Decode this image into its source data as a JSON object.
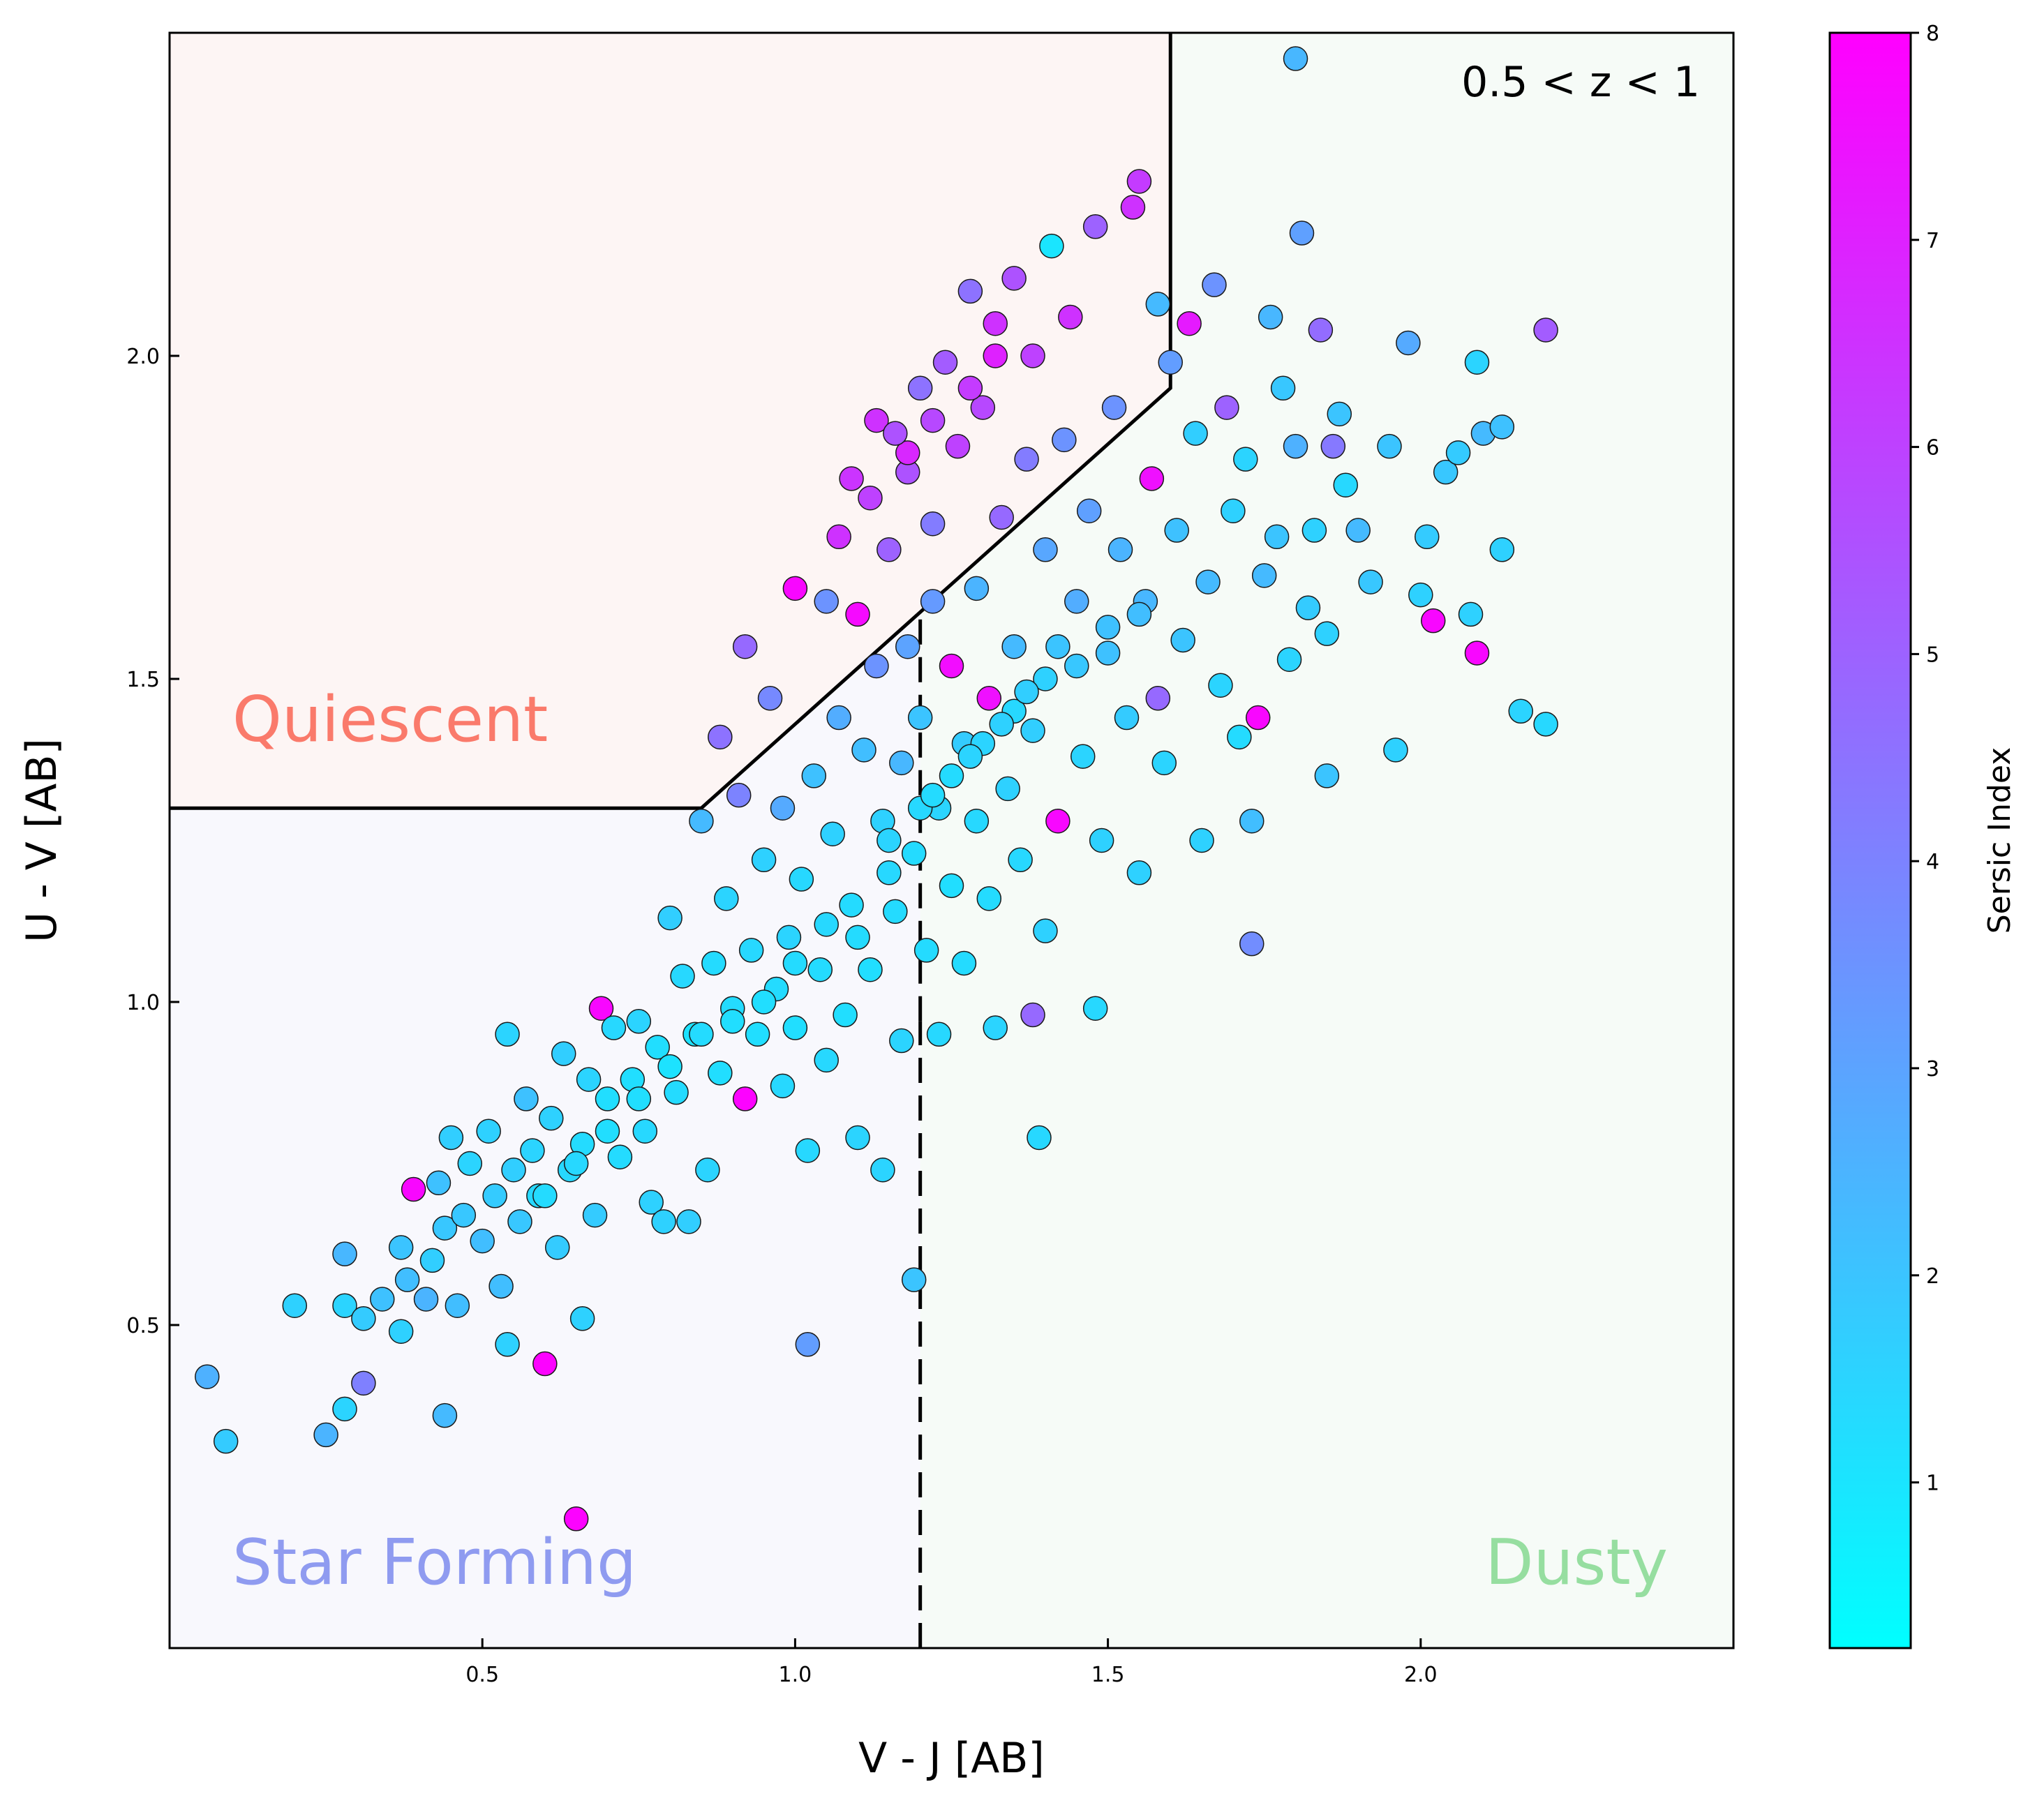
{
  "chart_data": {
    "type": "scatter",
    "xlabel": "V - J [AB]",
    "ylabel": "U - V [AB]",
    "xlim": [
      0.0,
      2.5
    ],
    "ylim": [
      0.0,
      2.5
    ],
    "xticks": [
      "0.5",
      "1.0",
      "1.5",
      "2.0"
    ],
    "yticks": [
      "0.5",
      "1.0",
      "1.5",
      "2.0"
    ],
    "grid": false,
    "annotation": "0.5 < z < 1",
    "regions": {
      "quiescent": {
        "label": "Quiescent",
        "color": "#fa7a6b",
        "fill": "#fdf5f4"
      },
      "star_forming": {
        "label": "Star Forming",
        "color": "#8f9bf0",
        "fill": "#f8f8fd"
      },
      "dusty": {
        "label": "Dusty",
        "color": "#96dea0",
        "fill": "#f6fbf7"
      }
    },
    "boundaries": {
      "quiescent_box": [
        [
          0.0,
          1.3
        ],
        [
          0.85,
          1.3
        ],
        [
          1.6,
          1.95
        ],
        [
          1.6,
          2.5
        ]
      ],
      "dusty_split": [
        [
          1.2,
          0.0
        ],
        [
          1.2,
          0.97
        ]
      ]
    },
    "colorbar": {
      "label": "Sersic Index",
      "range": [
        0.2,
        8.0
      ],
      "ticks": [
        "1",
        "2",
        "3",
        "4",
        "5",
        "6",
        "7",
        "8"
      ],
      "colormap": "cool",
      "color_low": "#00ffff",
      "color_high": "#ff00ff"
    },
    "points": [
      [
        0.06,
        0.42,
        2.6
      ],
      [
        0.09,
        0.32,
        1.8
      ],
      [
        0.2,
        0.53,
        1.6
      ],
      [
        0.25,
        0.33,
        2.5
      ],
      [
        0.28,
        0.37,
        1.5
      ],
      [
        0.28,
        0.53,
        1.5
      ],
      [
        0.28,
        0.61,
        2.4
      ],
      [
        0.31,
        0.51,
        1.8
      ],
      [
        0.31,
        0.41,
        4.1
      ],
      [
        0.34,
        0.54,
        2.1
      ],
      [
        0.37,
        0.49,
        1.6
      ],
      [
        0.37,
        0.62,
        2.0
      ],
      [
        0.38,
        0.57,
        2.2
      ],
      [
        0.39,
        0.71,
        7.8
      ],
      [
        0.41,
        0.54,
        2.5
      ],
      [
        0.42,
        0.6,
        1.7
      ],
      [
        0.43,
        0.72,
        2.1
      ],
      [
        0.44,
        0.36,
        2.3
      ],
      [
        0.44,
        0.65,
        1.9
      ],
      [
        0.45,
        0.79,
        1.7
      ],
      [
        0.46,
        0.53,
        2.2
      ],
      [
        0.47,
        0.67,
        1.9
      ],
      [
        0.48,
        0.75,
        1.5
      ],
      [
        0.5,
        0.63,
        2.2
      ],
      [
        0.51,
        0.8,
        1.6
      ],
      [
        0.52,
        0.7,
        1.8
      ],
      [
        0.53,
        0.56,
        2.2
      ],
      [
        0.54,
        0.47,
        1.6
      ],
      [
        0.54,
        0.95,
        1.5
      ],
      [
        0.55,
        0.74,
        1.7
      ],
      [
        0.56,
        0.66,
        1.9
      ],
      [
        0.57,
        0.85,
        2.1
      ],
      [
        0.58,
        0.77,
        1.5
      ],
      [
        0.59,
        0.7,
        1.4
      ],
      [
        0.6,
        0.44,
        7.9
      ],
      [
        0.61,
        0.82,
        1.6
      ],
      [
        0.62,
        0.62,
        1.8
      ],
      [
        0.63,
        0.92,
        1.7
      ],
      [
        0.64,
        0.74,
        1.4
      ],
      [
        0.65,
        0.2,
        7.9
      ],
      [
        0.66,
        0.51,
        1.6
      ],
      [
        0.66,
        0.78,
        1.3
      ],
      [
        0.67,
        0.88,
        1.5
      ],
      [
        0.68,
        0.67,
        1.8
      ],
      [
        0.69,
        0.99,
        7.8
      ],
      [
        0.7,
        0.85,
        1.2
      ],
      [
        0.71,
        0.96,
        1.4
      ],
      [
        0.72,
        0.76,
        1.3
      ],
      [
        0.74,
        0.88,
        1.2
      ],
      [
        0.75,
        0.97,
        1.5
      ],
      [
        0.76,
        0.8,
        1.4
      ],
      [
        0.77,
        0.69,
        1.6
      ],
      [
        0.78,
        0.93,
        1.2
      ],
      [
        0.79,
        0.66,
        1.6
      ],
      [
        0.8,
        1.13,
        1.7
      ],
      [
        0.81,
        0.86,
        1.3
      ],
      [
        0.82,
        1.04,
        1.4
      ],
      [
        0.83,
        0.66,
        1.7
      ],
      [
        0.84,
        0.95,
        1.1
      ],
      [
        0.85,
        1.28,
        2.3
      ],
      [
        0.86,
        0.74,
        1.5
      ],
      [
        0.87,
        1.06,
        1.3
      ],
      [
        0.88,
        0.89,
        1.2
      ],
      [
        0.88,
        1.41,
        4.5
      ],
      [
        0.89,
        1.16,
        1.5
      ],
      [
        0.9,
        0.99,
        1.3
      ],
      [
        0.91,
        1.32,
        4.0
      ],
      [
        0.92,
        1.55,
        4.8
      ],
      [
        0.92,
        0.85,
        7.9
      ],
      [
        0.93,
        1.08,
        1.4
      ],
      [
        0.94,
        0.95,
        1.2
      ],
      [
        0.95,
        1.22,
        1.6
      ],
      [
        0.96,
        1.47,
        3.8
      ],
      [
        0.97,
        1.02,
        1.3
      ],
      [
        0.98,
        1.3,
        2.8
      ],
      [
        0.98,
        0.87,
        1.4
      ],
      [
        0.99,
        1.1,
        1.5
      ],
      [
        1.0,
        1.64,
        7.8
      ],
      [
        1.0,
        0.96,
        1.2
      ],
      [
        1.01,
        1.19,
        1.4
      ],
      [
        1.02,
        0.77,
        1.4
      ],
      [
        1.02,
        0.47,
        3.2
      ],
      [
        1.03,
        1.35,
        2.1
      ],
      [
        1.04,
        1.05,
        1.3
      ],
      [
        1.05,
        1.62,
        3.5
      ],
      [
        1.05,
        0.91,
        1.4
      ],
      [
        1.06,
        1.26,
        1.6
      ],
      [
        1.07,
        1.72,
        6.5
      ],
      [
        1.07,
        1.44,
        2.7
      ],
      [
        1.08,
        0.98,
        1.2
      ],
      [
        1.09,
        1.81,
        6.4
      ],
      [
        1.09,
        1.15,
        1.3
      ],
      [
        1.1,
        1.6,
        7.7
      ],
      [
        1.1,
        0.79,
        1.5
      ],
      [
        1.11,
        1.39,
        2.2
      ],
      [
        1.12,
        1.05,
        1.2
      ],
      [
        1.13,
        1.9,
        6.5
      ],
      [
        1.13,
        1.52,
        3.5
      ],
      [
        1.14,
        1.28,
        1.6
      ],
      [
        1.14,
        0.74,
        1.5
      ],
      [
        1.15,
        1.7,
        5.0
      ],
      [
        1.16,
        1.14,
        1.3
      ],
      [
        1.17,
        1.37,
        2.4
      ],
      [
        1.17,
        0.94,
        1.5
      ],
      [
        1.18,
        1.82,
        5.5
      ],
      [
        1.18,
        1.55,
        3.0
      ],
      [
        1.19,
        1.23,
        1.3
      ],
      [
        1.19,
        0.57,
        2.0
      ],
      [
        1.2,
        1.95,
        4.5
      ],
      [
        1.2,
        1.44,
        2.0
      ],
      [
        1.21,
        1.08,
        1.3
      ],
      [
        1.22,
        1.74,
        4.2
      ],
      [
        1.22,
        1.62,
        3.3
      ],
      [
        1.23,
        1.3,
        1.5
      ],
      [
        1.23,
        0.95,
        1.4
      ],
      [
        1.24,
        1.99,
        5.2
      ],
      [
        1.25,
        1.52,
        7.6
      ],
      [
        1.25,
        1.18,
        1.2
      ],
      [
        1.26,
        1.86,
        6.0
      ],
      [
        1.27,
        1.4,
        1.8
      ],
      [
        1.27,
        1.06,
        1.3
      ],
      [
        1.28,
        2.1,
        4.5
      ],
      [
        1.29,
        1.64,
        2.5
      ],
      [
        1.29,
        1.28,
        1.4
      ],
      [
        1.3,
        1.92,
        5.8
      ],
      [
        1.31,
        1.47,
        7.5
      ],
      [
        1.31,
        1.16,
        1.3
      ],
      [
        1.32,
        2.05,
        6.5
      ],
      [
        1.32,
        0.96,
        1.5
      ],
      [
        1.33,
        1.75,
        4.8
      ],
      [
        1.34,
        1.33,
        1.6
      ],
      [
        1.35,
        2.12,
        5.5
      ],
      [
        1.35,
        1.55,
        2.3
      ],
      [
        1.36,
        1.22,
        1.4
      ],
      [
        1.37,
        1.84,
        4.2
      ],
      [
        1.38,
        2.0,
        6.0
      ],
      [
        1.38,
        1.42,
        1.7
      ],
      [
        1.38,
        0.98,
        4.8
      ],
      [
        1.39,
        0.79,
        1.4
      ],
      [
        1.4,
        1.7,
        2.9
      ],
      [
        1.4,
        1.11,
        1.6
      ],
      [
        1.41,
        2.17,
        1.0
      ],
      [
        1.42,
        1.28,
        7.8
      ],
      [
        1.42,
        1.55,
        2.0
      ],
      [
        1.43,
        1.87,
        3.5
      ],
      [
        1.44,
        2.06,
        6.5
      ],
      [
        1.45,
        1.62,
        2.7
      ],
      [
        1.46,
        1.38,
        1.5
      ],
      [
        1.47,
        1.76,
        3.1
      ],
      [
        1.48,
        2.2,
        5.0
      ],
      [
        1.48,
        0.99,
        1.4
      ],
      [
        1.49,
        1.25,
        1.6
      ],
      [
        1.5,
        1.54,
        2.1
      ],
      [
        1.51,
        1.92,
        3.5
      ],
      [
        1.52,
        1.7,
        2.5
      ],
      [
        1.53,
        1.44,
        1.8
      ],
      [
        1.54,
        2.23,
        6.5
      ],
      [
        1.55,
        2.27,
        6.2
      ],
      [
        1.55,
        1.2,
        1.6
      ],
      [
        1.56,
        1.62,
        2.4
      ],
      [
        1.57,
        1.81,
        7.5
      ],
      [
        1.58,
        2.08,
        2.3
      ],
      [
        1.58,
        1.47,
        4.8
      ],
      [
        1.59,
        1.37,
        1.5
      ],
      [
        1.6,
        1.99,
        3.2
      ],
      [
        1.61,
        1.73,
        2.1
      ],
      [
        1.62,
        1.56,
        2.0
      ],
      [
        1.63,
        2.05,
        7.2
      ],
      [
        1.64,
        1.88,
        1.7
      ],
      [
        1.65,
        1.25,
        1.6
      ],
      [
        1.66,
        1.65,
        2.3
      ],
      [
        1.67,
        2.11,
        3.5
      ],
      [
        1.68,
        1.49,
        1.5
      ],
      [
        1.69,
        1.92,
        5.0
      ],
      [
        1.7,
        1.76,
        1.6
      ],
      [
        1.71,
        1.41,
        1.3
      ],
      [
        1.72,
        1.84,
        1.5
      ],
      [
        1.73,
        1.28,
        2.2
      ],
      [
        1.73,
        1.09,
        3.7
      ],
      [
        1.74,
        1.44,
        7.8
      ],
      [
        1.75,
        1.66,
        2.3
      ],
      [
        1.76,
        2.06,
        2.4
      ],
      [
        1.77,
        1.72,
        2.0
      ],
      [
        1.78,
        1.95,
        1.9
      ],
      [
        1.79,
        1.53,
        1.5
      ],
      [
        1.8,
        1.86,
        2.6
      ],
      [
        1.8,
        2.46,
        2.4
      ],
      [
        1.81,
        2.19,
        3.1
      ],
      [
        1.82,
        1.61,
        1.8
      ],
      [
        1.83,
        1.73,
        1.6
      ],
      [
        1.84,
        2.04,
        4.7
      ],
      [
        1.85,
        1.35,
        2.0
      ],
      [
        1.85,
        1.57,
        1.6
      ],
      [
        1.86,
        1.86,
        4.3
      ],
      [
        1.87,
        1.91,
        2.0
      ],
      [
        1.88,
        1.8,
        1.4
      ],
      [
        1.9,
        1.73,
        2.3
      ],
      [
        1.92,
        1.65,
        1.9
      ],
      [
        1.95,
        1.86,
        2.0
      ],
      [
        1.96,
        1.39,
        1.6
      ],
      [
        1.98,
        2.02,
        2.8
      ],
      [
        2.0,
        1.63,
        1.6
      ],
      [
        2.01,
        1.72,
        1.8
      ],
      [
        2.02,
        1.59,
        7.8
      ],
      [
        2.04,
        1.82,
        1.9
      ],
      [
        2.06,
        1.85,
        1.8
      ],
      [
        2.08,
        1.6,
        1.6
      ],
      [
        2.09,
        1.99,
        1.5
      ],
      [
        2.09,
        1.54,
        7.8
      ],
      [
        2.1,
        1.88,
        2.3
      ],
      [
        2.13,
        1.89,
        2.1
      ],
      [
        2.13,
        1.7,
        1.6
      ],
      [
        2.16,
        1.45,
        1.5
      ],
      [
        2.2,
        2.04,
        5.2
      ],
      [
        2.2,
        1.43,
        1.4
      ],
      [
        1.55,
        1.6,
        2.2
      ],
      [
        1.2,
        1.3,
        1.4
      ],
      [
        1.25,
        1.35,
        1.3
      ],
      [
        1.15,
        1.2,
        1.4
      ],
      [
        1.1,
        1.1,
        1.3
      ],
      [
        1.3,
        1.4,
        1.5
      ],
      [
        1.35,
        1.45,
        1.4
      ],
      [
        1.4,
        1.5,
        1.6
      ],
      [
        0.95,
        1.0,
        1.2
      ],
      [
        0.85,
        0.95,
        1.3
      ],
      [
        0.75,
        0.85,
        1.2
      ],
      [
        0.65,
        0.75,
        1.4
      ],
      [
        0.6,
        0.7,
        1.3
      ],
      [
        0.7,
        0.8,
        1.2
      ],
      [
        0.8,
        0.9,
        1.1
      ],
      [
        0.9,
        0.97,
        1.2
      ],
      [
        1.0,
        1.06,
        1.3
      ],
      [
        1.05,
        1.12,
        1.4
      ],
      [
        1.15,
        1.25,
        1.5
      ],
      [
        1.22,
        1.32,
        1.3
      ],
      [
        1.28,
        1.38,
        1.5
      ],
      [
        1.33,
        1.43,
        1.6
      ],
      [
        1.37,
        1.48,
        1.7
      ],
      [
        1.45,
        1.52,
        1.9
      ],
      [
        1.5,
        1.58,
        2.1
      ],
      [
        1.18,
        1.85,
        6.8
      ],
      [
        1.22,
        1.9,
        5.8
      ],
      [
        1.28,
        1.95,
        6.2
      ],
      [
        1.32,
        2.0,
        7.0
      ],
      [
        1.12,
        1.78,
        6.0
      ],
      [
        1.16,
        1.88,
        5.5
      ]
    ]
  }
}
